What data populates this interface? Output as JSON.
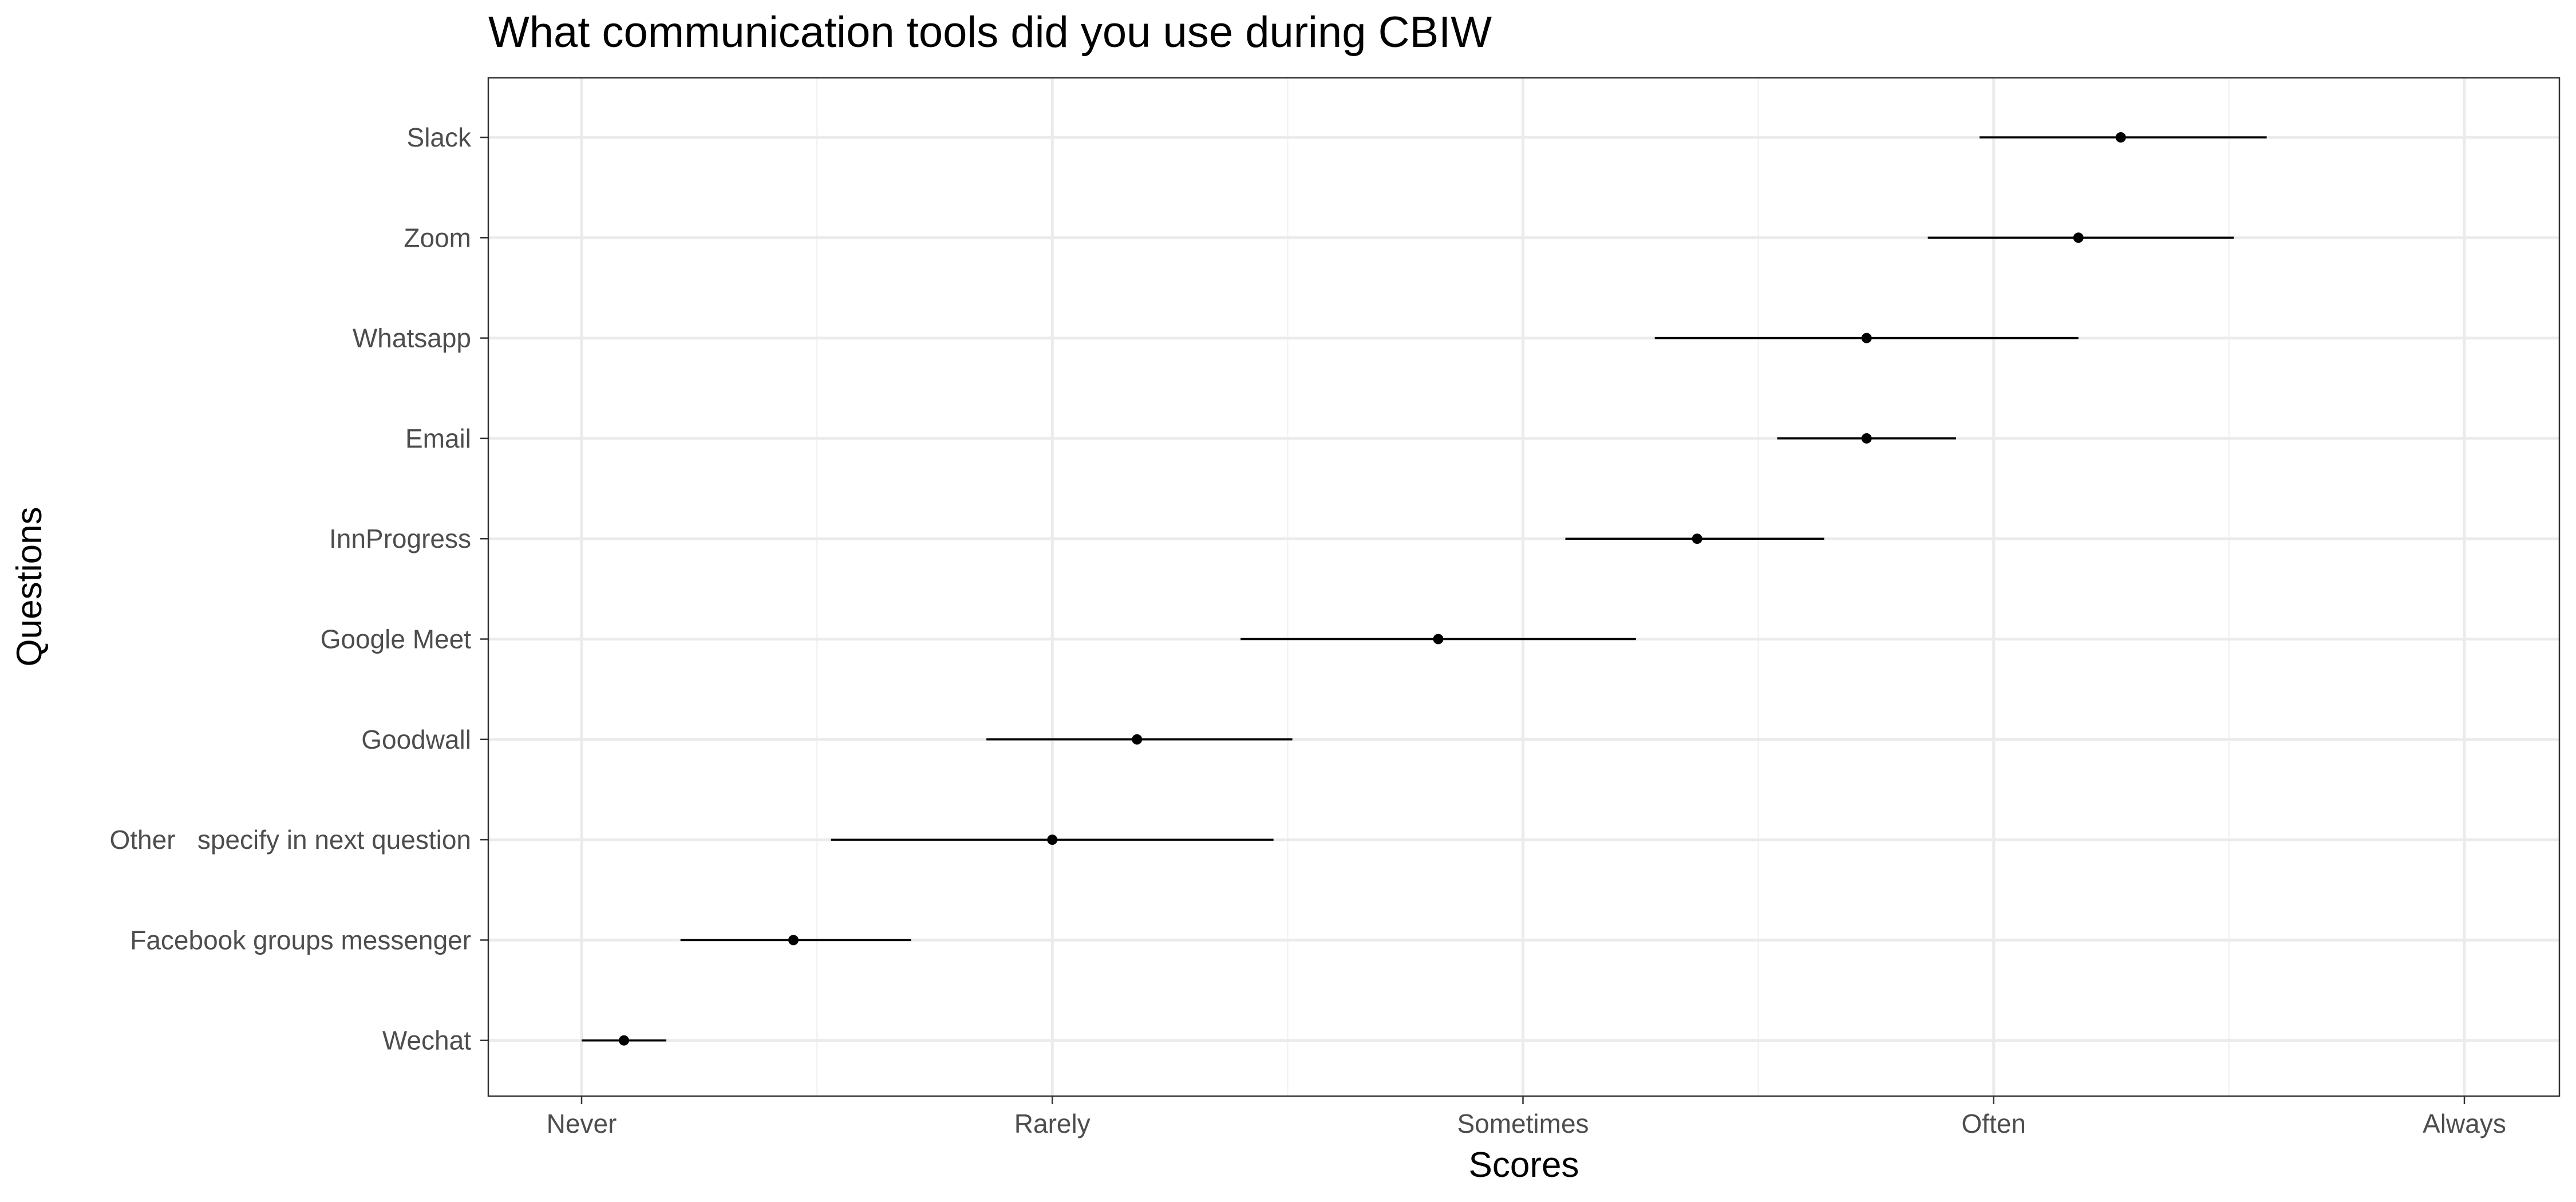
{
  "chart_data": {
    "type": "scatter",
    "title": "What communication tools did you use during CBIW",
    "xlabel": "Scores",
    "ylabel": "Questions",
    "xlim": [
      0.8,
      5.2
    ],
    "x_ticks": [
      {
        "value": 1,
        "label": "Never"
      },
      {
        "value": 2,
        "label": "Rarely"
      },
      {
        "value": 3,
        "label": "Sometimes"
      },
      {
        "value": 4,
        "label": "Often"
      },
      {
        "value": 5,
        "label": "Always"
      }
    ],
    "x_minor_ticks": [
      1.5,
      2.5,
      3.5,
      4.5
    ],
    "grid": true,
    "categories": [
      "Slack",
      "Zoom",
      "Whatsapp",
      "Email",
      "InnProgress",
      "Google Meet",
      "Goodwall",
      "Other   specify in next question",
      "Facebook groups messenger",
      "Wechat"
    ],
    "points": [
      {
        "category": "Slack",
        "mean": 4.27,
        "low": 3.97,
        "high": 4.58
      },
      {
        "category": "Zoom",
        "mean": 4.18,
        "low": 3.86,
        "high": 4.51
      },
      {
        "category": "Whatsapp",
        "mean": 3.73,
        "low": 3.28,
        "high": 4.18
      },
      {
        "category": "Email",
        "mean": 3.73,
        "low": 3.54,
        "high": 3.92
      },
      {
        "category": "InnProgress",
        "mean": 3.37,
        "low": 3.09,
        "high": 3.64
      },
      {
        "category": "Google Meet",
        "mean": 2.82,
        "low": 2.4,
        "high": 3.24
      },
      {
        "category": "Goodwall",
        "mean": 2.18,
        "low": 1.86,
        "high": 2.51
      },
      {
        "category": "Other   specify in next question",
        "mean": 2.0,
        "low": 1.53,
        "high": 2.47
      },
      {
        "category": "Facebook groups messenger",
        "mean": 1.45,
        "low": 1.21,
        "high": 1.7
      },
      {
        "category": "Wechat",
        "mean": 1.09,
        "low": 1.0,
        "high": 1.18
      }
    ]
  }
}
